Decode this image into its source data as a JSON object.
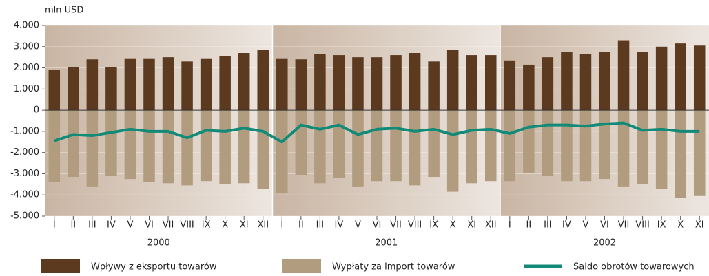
{
  "chart_data": {
    "type": "bar",
    "y_axis_label": "mln USD",
    "categories": [
      "I",
      "II",
      "III",
      "IV",
      "V",
      "VI",
      "VII",
      "VIII",
      "IX",
      "X",
      "XI",
      "XII",
      "I",
      "II",
      "III",
      "IV",
      "V",
      "VI",
      "VII",
      "VIII",
      "IX",
      "X",
      "XI",
      "XII",
      "I",
      "II",
      "III",
      "IV",
      "V",
      "VI",
      "VII",
      "VIII",
      "IX",
      "X",
      "XI"
    ],
    "years": [
      "2000",
      "2001",
      "2002"
    ],
    "series": [
      {
        "name": "Wpływy z eksportu towarów",
        "color": "#5b3a20",
        "kind": "bar",
        "values": [
          1900,
          2050,
          2400,
          2050,
          2450,
          2450,
          2500,
          2300,
          2450,
          2550,
          2700,
          2850,
          2450,
          2400,
          2650,
          2600,
          2500,
          2500,
          2600,
          2700,
          2300,
          2850,
          2600,
          2600,
          2350,
          2150,
          2500,
          2750,
          2650,
          2750,
          3300,
          2750,
          3000,
          3150,
          3050
        ]
      },
      {
        "name": "Wypłaty za import towarów",
        "color": "#b29c80",
        "kind": "bar",
        "values": [
          -3400,
          -3150,
          -3600,
          -3100,
          -3250,
          -3400,
          -3450,
          -3550,
          -3350,
          -3500,
          -3450,
          -3700,
          -3900,
          -3050,
          -3450,
          -3200,
          -3600,
          -3350,
          -3350,
          -3550,
          -3150,
          -3850,
          -3450,
          -3350,
          -3350,
          -2950,
          -3100,
          -3350,
          -3350,
          -3250,
          -3600,
          -3500,
          -3700,
          -4150,
          -4050
        ]
      },
      {
        "name": "Saldo obrotów towarowych",
        "color": "#128a78",
        "kind": "line",
        "values": [
          -1450,
          -1150,
          -1200,
          -1050,
          -900,
          -1000,
          -1000,
          -1300,
          -950,
          -1000,
          -850,
          -1000,
          -1500,
          -700,
          -900,
          -700,
          -1150,
          -900,
          -850,
          -1000,
          -900,
          -1150,
          -950,
          -900,
          -1100,
          -800,
          -700,
          -700,
          -750,
          -650,
          -600,
          -950,
          -900,
          -1000,
          -1000
        ]
      }
    ],
    "ylim": [
      -5000,
      4000
    ],
    "yticks": [
      {
        "value": 4000,
        "label": "4.000"
      },
      {
        "value": 3000,
        "label": "3.000"
      },
      {
        "value": 2000,
        "label": "2.000"
      },
      {
        "value": 1000,
        "label": "1.000"
      },
      0,
      {
        "value": -1000,
        "label": "-1.000"
      },
      {
        "value": -2000,
        "label": "-2.000"
      },
      {
        "value": -3000,
        "label": "-3.000"
      },
      {
        "value": -4000,
        "label": "-4.000"
      },
      {
        "value": -5000,
        "label": "-5.000"
      }
    ],
    "grid": true
  }
}
